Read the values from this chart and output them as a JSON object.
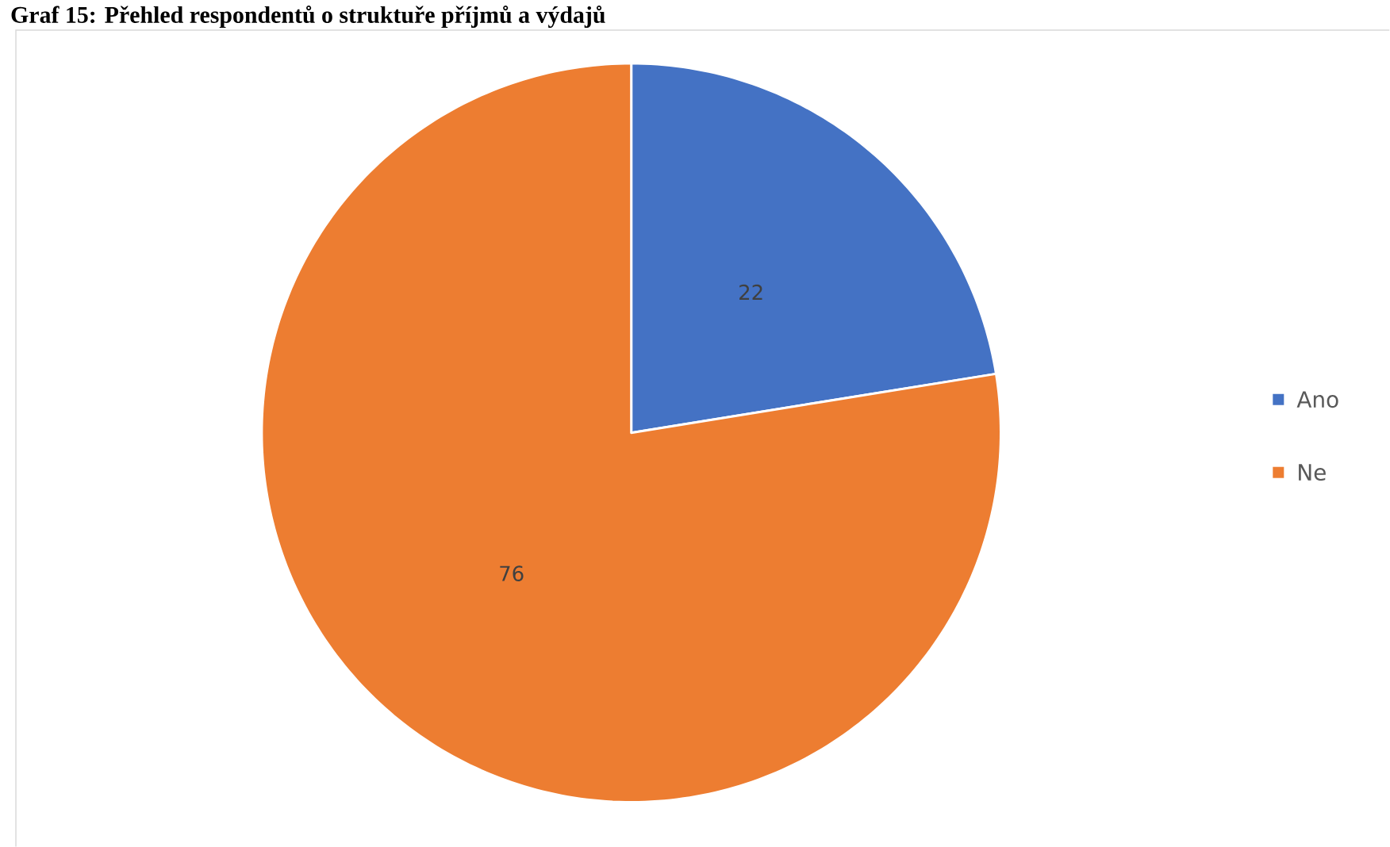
{
  "chart_data": {
    "type": "pie",
    "title": "Graf 15: Přehled respondentů o struktuře příjmů a výdajů",
    "categories": [
      "Ano",
      "Ne"
    ],
    "values": [
      22,
      76
    ],
    "colors": [
      "#4472c4",
      "#ed7d31"
    ],
    "data_labels": true,
    "legend": "right"
  }
}
